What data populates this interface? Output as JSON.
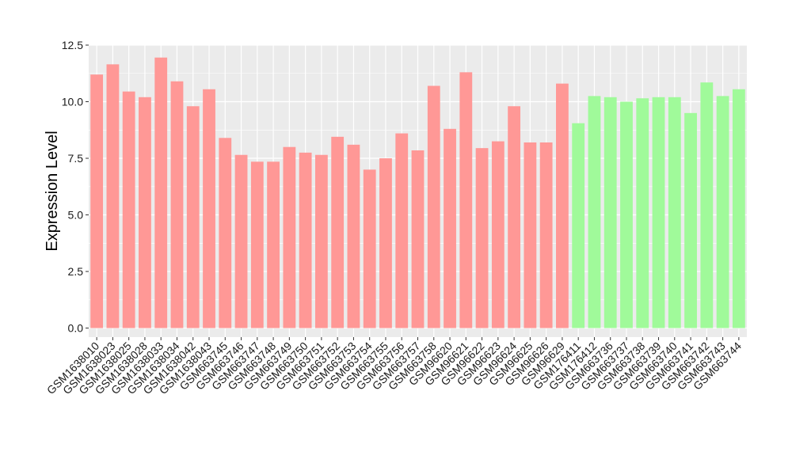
{
  "chart_data": {
    "type": "bar",
    "ylabel": "Expression Level",
    "xlabel": "",
    "title": "",
    "ylim": [
      -0.4,
      12.5
    ],
    "yticks": [
      0.0,
      2.5,
      5.0,
      7.5,
      10.0,
      12.5
    ],
    "ytick_labels": [
      "0.0",
      "2.5",
      "5.0",
      "7.5",
      "10.0",
      "12.5"
    ],
    "grid": true,
    "legend": "none",
    "colors": {
      "group_1": "#ff9896",
      "group_2": "#a0fa9a",
      "panel": "#ebebeb",
      "grid": "#ffffff"
    },
    "categories": [
      "GSM1638010",
      "GSM1638023",
      "GSM1638025",
      "GSM1638028",
      "GSM1638033",
      "GSM1638034",
      "GSM1638042",
      "GSM1638043",
      "GSM663745",
      "GSM663746",
      "GSM663747",
      "GSM663748",
      "GSM663749",
      "GSM663750",
      "GSM663751",
      "GSM663752",
      "GSM663753",
      "GSM663754",
      "GSM663755",
      "GSM663756",
      "GSM663757",
      "GSM663758",
      "GSM96620",
      "GSM96621",
      "GSM96622",
      "GSM96623",
      "GSM96624",
      "GSM96625",
      "GSM96626",
      "GSM96629",
      "GSM176411",
      "GSM176412",
      "GSM663736",
      "GSM663737",
      "GSM663738",
      "GSM663739",
      "GSM663740",
      "GSM663741",
      "GSM663742",
      "GSM663743",
      "GSM663744"
    ],
    "values": [
      11.2,
      11.65,
      10.45,
      10.2,
      11.95,
      10.9,
      9.8,
      10.55,
      8.4,
      7.65,
      7.35,
      7.35,
      8.0,
      7.75,
      7.65,
      8.45,
      8.1,
      7.0,
      7.5,
      8.6,
      7.85,
      10.7,
      8.8,
      11.3,
      7.95,
      8.25,
      9.8,
      8.2,
      8.2,
      10.8,
      9.05,
      10.25,
      10.2,
      10.0,
      10.15,
      10.2,
      10.2,
      9.5,
      10.85,
      10.25,
      10.55
    ],
    "groups": [
      1,
      1,
      1,
      1,
      1,
      1,
      1,
      1,
      1,
      1,
      1,
      1,
      1,
      1,
      1,
      1,
      1,
      1,
      1,
      1,
      1,
      1,
      1,
      1,
      1,
      1,
      1,
      1,
      1,
      1,
      2,
      2,
      2,
      2,
      2,
      2,
      2,
      2,
      2,
      2,
      2
    ]
  }
}
